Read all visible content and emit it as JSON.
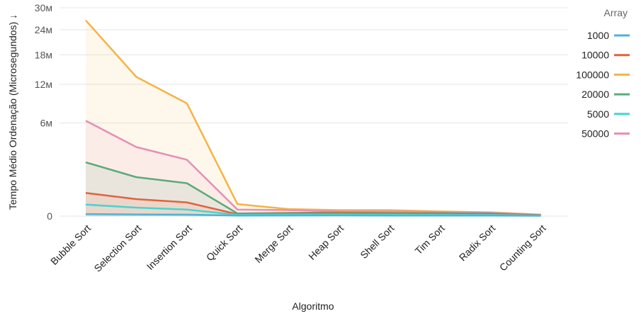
{
  "chart_data": {
    "type": "area",
    "xlabel": "Algoritmo",
    "ylabel": "Tempo Médio Ordenação (Microsegundos) ↓",
    "y_scale": "sqrt",
    "ylim": [
      0,
      30000000
    ],
    "y_ticks": [
      {
        "value": 0,
        "label": "0"
      },
      {
        "value": 6000000,
        "label": "6м"
      },
      {
        "value": 12000000,
        "label": "12м"
      },
      {
        "value": 18000000,
        "label": "18м"
      },
      {
        "value": 24000000,
        "label": "24м"
      },
      {
        "value": 30000000,
        "label": "30м"
      }
    ],
    "grid": true,
    "legend_title": "Array",
    "legend_position": "right",
    "categories": [
      "Bubble Sort",
      "Selection Sort",
      "Insertion Sort",
      "Quick Sort",
      "Merge Sort",
      "Heap Sort",
      "Shell Sort",
      "Tim Sort",
      "Radix Sort",
      "Counting Sort"
    ],
    "series": [
      {
        "name": "1000",
        "color": "#4fb3d9",
        "fill": false,
        "values": [
          3000,
          2000,
          1500,
          200,
          300,
          350,
          250,
          200,
          200,
          100
        ]
      },
      {
        "name": "10000",
        "color": "#e2623d",
        "fill": true,
        "values": [
          370000,
          200000,
          130000,
          2500,
          4000,
          5000,
          4000,
          3500,
          3000,
          500
        ]
      },
      {
        "name": "100000",
        "color": "#f4b444",
        "fill": true,
        "values": [
          26500000,
          13400000,
          8800000,
          100000,
          35000,
          25000,
          25000,
          15000,
          10000,
          1500
        ]
      },
      {
        "name": "20000",
        "color": "#5aab7b",
        "fill": true,
        "values": [
          2000000,
          1050000,
          750000,
          5000,
          7000,
          9000,
          7000,
          6000,
          5000,
          800
        ]
      },
      {
        "name": "5000",
        "color": "#48d4d0",
        "fill": false,
        "values": [
          92000,
          50000,
          30000,
          1200,
          1800,
          2000,
          1500,
          1200,
          1000,
          300
        ]
      },
      {
        "name": "50000",
        "color": "#e68fb8",
        "fill": true,
        "values": [
          6300000,
          3300000,
          2200000,
          30000,
          25000,
          15000,
          15000,
          12000,
          8000,
          1200
        ]
      }
    ]
  }
}
